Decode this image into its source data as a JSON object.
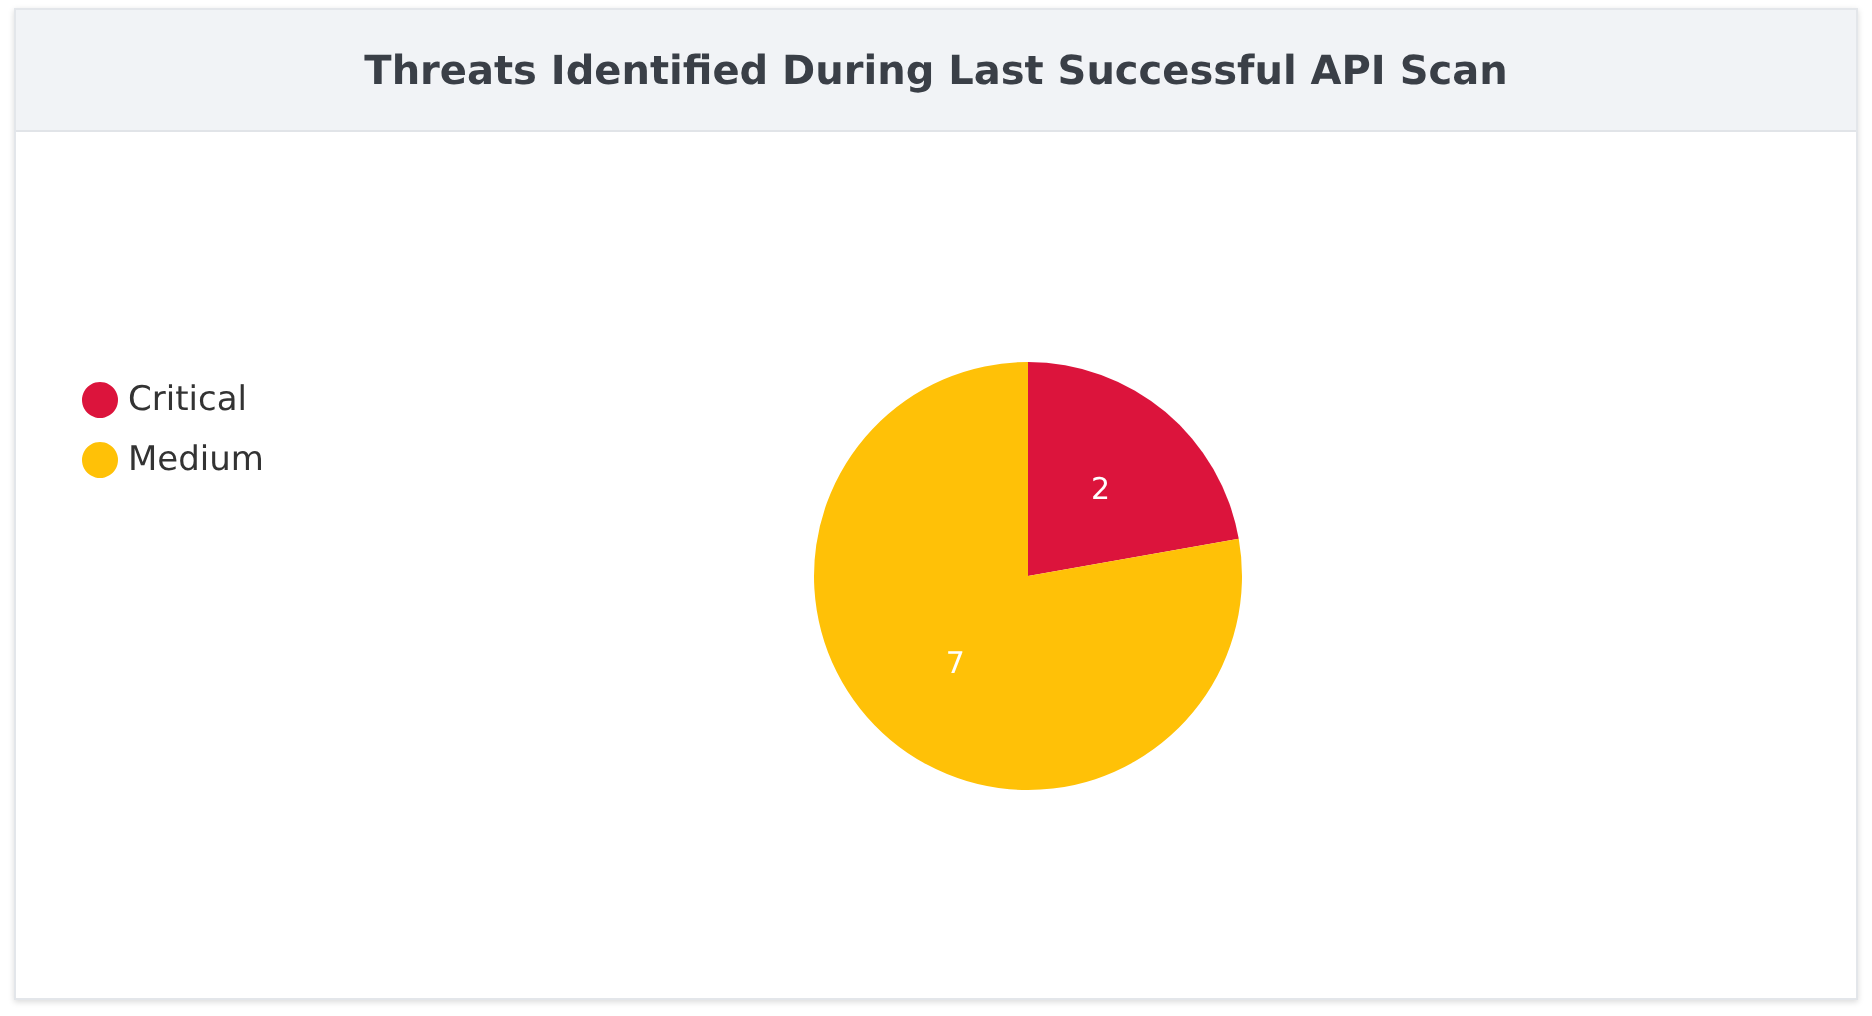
{
  "chart_data": {
    "type": "pie",
    "title": "Threats Identified During Last Successful API Scan",
    "categories": [
      "Critical",
      "Medium"
    ],
    "values": [
      2,
      7
    ],
    "colors": [
      "#dc143c",
      "#ffc107"
    ],
    "data_labels": true,
    "legend": "left"
  }
}
